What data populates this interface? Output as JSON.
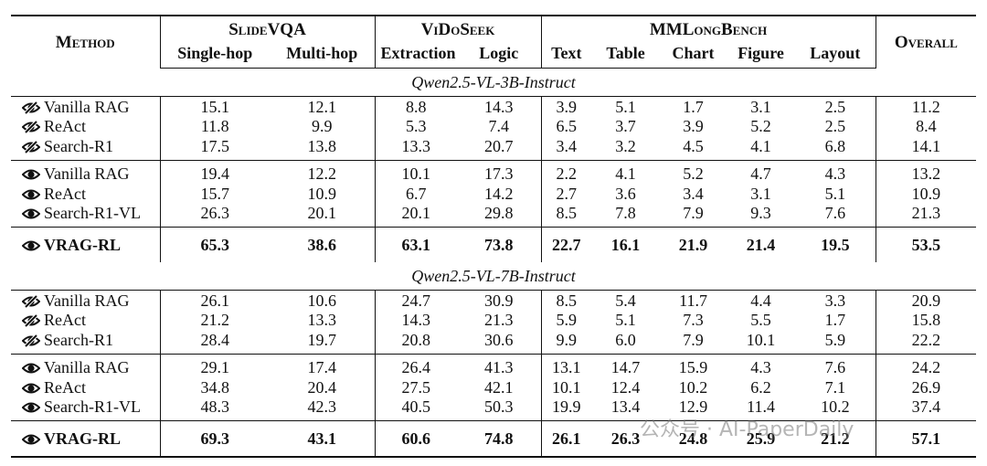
{
  "table": {
    "header": {
      "method": "Method",
      "groups": [
        {
          "name": "SlideVQA",
          "columns": [
            "Single-hop",
            "Multi-hop"
          ]
        },
        {
          "name": "ViDoSeek",
          "columns": [
            "Extraction",
            "Logic"
          ]
        },
        {
          "name": "MMLongBench",
          "columns": [
            "Text",
            "Table",
            "Chart",
            "Figure",
            "Layout"
          ]
        }
      ],
      "overall": "Overall"
    },
    "sections": [
      {
        "title": "Qwen2.5-VL-3B-Instruct",
        "blocks": [
          {
            "icon": "eye-slash",
            "bold": false,
            "rows": [
              {
                "method": "Vanilla RAG",
                "values": [
                  "15.1",
                  "12.1",
                  "8.8",
                  "14.3",
                  "3.9",
                  "5.1",
                  "1.7",
                  "3.1",
                  "2.5"
                ],
                "overall": "11.2"
              },
              {
                "method": "ReAct",
                "values": [
                  "11.8",
                  "9.9",
                  "5.3",
                  "7.4",
                  "6.5",
                  "3.7",
                  "3.9",
                  "5.2",
                  "2.5"
                ],
                "overall": "8.4"
              },
              {
                "method": "Search-R1",
                "values": [
                  "17.5",
                  "13.8",
                  "13.3",
                  "20.7",
                  "3.4",
                  "3.2",
                  "4.5",
                  "4.1",
                  "6.8"
                ],
                "overall": "14.1"
              }
            ]
          },
          {
            "icon": "eye",
            "bold": false,
            "rows": [
              {
                "method": "Vanilla RAG",
                "values": [
                  "19.4",
                  "12.2",
                  "10.1",
                  "17.3",
                  "2.2",
                  "4.1",
                  "5.2",
                  "4.7",
                  "4.3"
                ],
                "overall": "13.2"
              },
              {
                "method": "ReAct",
                "values": [
                  "15.7",
                  "10.9",
                  "6.7",
                  "14.2",
                  "2.7",
                  "3.6",
                  "3.4",
                  "3.1",
                  "5.1"
                ],
                "overall": "10.9"
              },
              {
                "method": "Search-R1-VL",
                "values": [
                  "26.3",
                  "20.1",
                  "20.1",
                  "29.8",
                  "8.5",
                  "7.8",
                  "7.9",
                  "9.3",
                  "7.6"
                ],
                "overall": "21.3"
              }
            ]
          },
          {
            "icon": "eye",
            "bold": true,
            "rows": [
              {
                "method": "VRAG-RL",
                "values": [
                  "65.3",
                  "38.6",
                  "63.1",
                  "73.8",
                  "22.7",
                  "16.1",
                  "21.9",
                  "21.4",
                  "19.5"
                ],
                "overall": "53.5"
              }
            ]
          }
        ]
      },
      {
        "title": "Qwen2.5-VL-7B-Instruct",
        "blocks": [
          {
            "icon": "eye-slash",
            "bold": false,
            "rows": [
              {
                "method": "Vanilla RAG",
                "values": [
                  "26.1",
                  "10.6",
                  "24.7",
                  "30.9",
                  "8.5",
                  "5.4",
                  "11.7",
                  "4.4",
                  "3.3"
                ],
                "overall": "20.9"
              },
              {
                "method": "ReAct",
                "values": [
                  "21.2",
                  "13.3",
                  "14.3",
                  "21.3",
                  "5.9",
                  "5.1",
                  "7.3",
                  "5.5",
                  "1.7"
                ],
                "overall": "15.8"
              },
              {
                "method": "Search-R1",
                "values": [
                  "28.4",
                  "19.7",
                  "20.8",
                  "30.6",
                  "9.9",
                  "6.0",
                  "7.9",
                  "10.1",
                  "5.9"
                ],
                "overall": "22.2"
              }
            ]
          },
          {
            "icon": "eye",
            "bold": false,
            "rows": [
              {
                "method": "Vanilla RAG",
                "values": [
                  "29.1",
                  "17.4",
                  "26.4",
                  "41.3",
                  "13.1",
                  "14.7",
                  "15.9",
                  "4.3",
                  "7.6"
                ],
                "overall": "24.2"
              },
              {
                "method": "ReAct",
                "values": [
                  "34.8",
                  "20.4",
                  "27.5",
                  "42.1",
                  "10.1",
                  "12.4",
                  "10.2",
                  "6.2",
                  "7.1"
                ],
                "overall": "26.9"
              },
              {
                "method": "Search-R1-VL",
                "values": [
                  "48.3",
                  "42.3",
                  "40.5",
                  "50.3",
                  "19.9",
                  "13.4",
                  "12.9",
                  "11.4",
                  "10.2"
                ],
                "overall": "37.4"
              }
            ]
          },
          {
            "icon": "eye",
            "bold": true,
            "rows": [
              {
                "method": "VRAG-RL",
                "values": [
                  "69.3",
                  "43.1",
                  "60.6",
                  "74.8",
                  "26.1",
                  "26.3",
                  "24.8",
                  "25.9",
                  "21.2"
                ],
                "overall": "57.1"
              }
            ]
          }
        ]
      }
    ]
  },
  "watermark": "公众号 · AI-PaperDaily"
}
